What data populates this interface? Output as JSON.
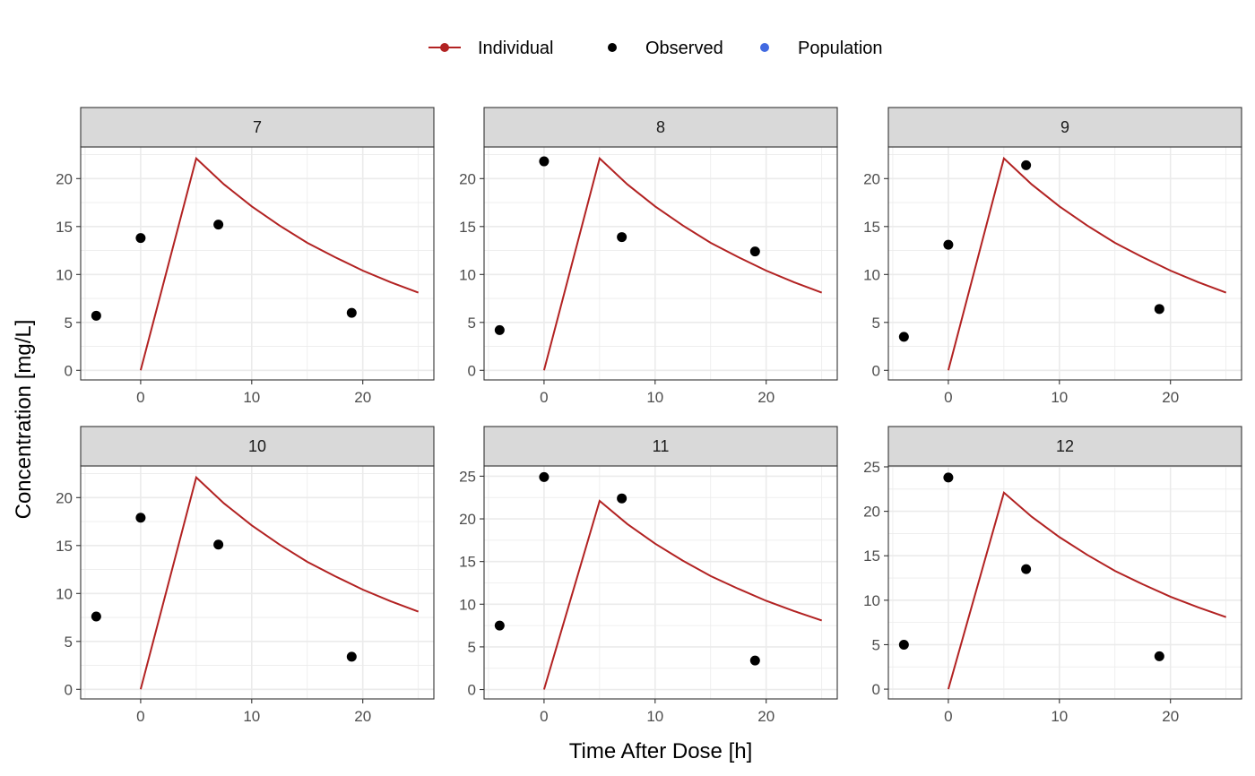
{
  "chart_data": {
    "type": "scatter",
    "xlabel": "Time After Dose [h]",
    "ylabel": "Concentration [mg/L]",
    "legend": {
      "position": "top",
      "entries": [
        {
          "name": "Individual",
          "color": "#B22222",
          "kind": "line-point"
        },
        {
          "name": "Observed",
          "color": "#000000",
          "kind": "point"
        },
        {
          "name": "Population",
          "color": "#4169E1",
          "kind": "point"
        }
      ]
    },
    "grid": true,
    "xlim": [
      -5.4,
      26.4
    ],
    "x_ticks": [
      0,
      10,
      20
    ],
    "individual_curve": {
      "x": [
        0,
        5,
        7.5,
        10,
        12.5,
        15,
        17.5,
        20,
        22.5,
        25
      ],
      "y": [
        0,
        22.1,
        19.4,
        17.1,
        15.1,
        13.3,
        11.8,
        10.4,
        9.2,
        8.1
      ]
    },
    "panels": [
      {
        "label": "7",
        "ylim": [
          -1,
          23.3
        ],
        "y_ticks": [
          0,
          5,
          10,
          15,
          20
        ],
        "observed": {
          "x": [
            -4,
            0,
            7,
            19
          ],
          "y": [
            5.7,
            13.8,
            15.2,
            6.0
          ]
        }
      },
      {
        "label": "8",
        "ylim": [
          -1,
          23.3
        ],
        "y_ticks": [
          0,
          5,
          10,
          15,
          20
        ],
        "observed": {
          "x": [
            -4,
            0,
            7,
            19
          ],
          "y": [
            4.2,
            21.8,
            13.9,
            12.4
          ]
        }
      },
      {
        "label": "9",
        "ylim": [
          -1,
          23.3
        ],
        "y_ticks": [
          0,
          5,
          10,
          15,
          20
        ],
        "observed": {
          "x": [
            -4,
            0,
            7,
            19
          ],
          "y": [
            3.5,
            13.1,
            21.4,
            6.4
          ]
        }
      },
      {
        "label": "10",
        "ylim": [
          -1,
          23.3
        ],
        "y_ticks": [
          0,
          5,
          10,
          15,
          20
        ],
        "observed": {
          "x": [
            -4,
            0,
            7,
            19
          ],
          "y": [
            7.6,
            17.9,
            15.1,
            3.4
          ]
        }
      },
      {
        "label": "11",
        "ylim": [
          -1.1,
          26.2
        ],
        "y_ticks": [
          0,
          5,
          10,
          15,
          20,
          25
        ],
        "observed": {
          "x": [
            -4,
            0,
            7,
            19
          ],
          "y": [
            7.5,
            24.9,
            22.4,
            3.4
          ]
        }
      },
      {
        "label": "12",
        "ylim": [
          -1.1,
          25.1
        ],
        "y_ticks": [
          0,
          5,
          10,
          15,
          20,
          25
        ],
        "observed": {
          "x": [
            -4,
            0,
            7,
            19
          ],
          "y": [
            5.0,
            23.8,
            13.5,
            3.7
          ]
        }
      }
    ]
  }
}
